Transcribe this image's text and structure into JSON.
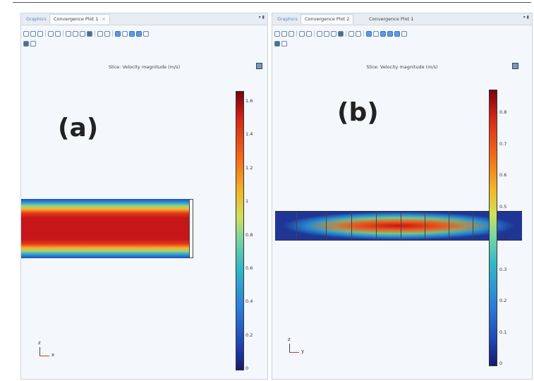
{
  "left_panel": {
    "tabs": [
      "Graphics",
      "Convergence Plot 1"
    ],
    "tab_close": "×",
    "window_controls": "▾ ▮",
    "plot_title": "Slice: Velocity magnitude (m/s)",
    "label": "(a)",
    "colorbar_ticks": [
      "1.6",
      "1.4",
      "1.2",
      "1",
      "0.8",
      "0.6",
      "0.4",
      "0.2",
      "0"
    ],
    "axes": {
      "vertical": "z",
      "horizontal": "x"
    }
  },
  "right_panel": {
    "tabs": [
      "Graphics",
      "Convergence Plot 2",
      "Convergence Plot 1"
    ],
    "window_controls": "▾ ▮",
    "plot_title": "Slice: Velocity magnitude (m/s)",
    "label": "(b)",
    "colorbar_ticks": [
      "0.8",
      "0.7",
      "0.6",
      "0.5",
      "0.4",
      "0.3",
      "0.2",
      "0.1",
      "0"
    ],
    "axes": {
      "vertical": "z",
      "horizontal": "y"
    }
  },
  "colormap": [
    "#7a0010",
    "#d42817",
    "#f36b18",
    "#f3b52a",
    "#cfe05a",
    "#79d6a0",
    "#31b9c7",
    "#2b7ed7",
    "#1f45b2",
    "#161a6e"
  ],
  "toolbar_icons": [
    "zoom-in-icon",
    "zoom-out-icon",
    "zoom-box-icon",
    "zoom-extents-icon",
    "view-icon",
    "go-to-xy-icon",
    "go-to-yz-icon",
    "go-to-zx-icon",
    "go-to-default-icon",
    "rotate-icon",
    "scene-light-icon",
    "transparency-icon",
    "select-icon",
    "grid-icon",
    "layout-icon",
    "settings-icon",
    "snapshot-icon",
    "print-icon"
  ]
}
